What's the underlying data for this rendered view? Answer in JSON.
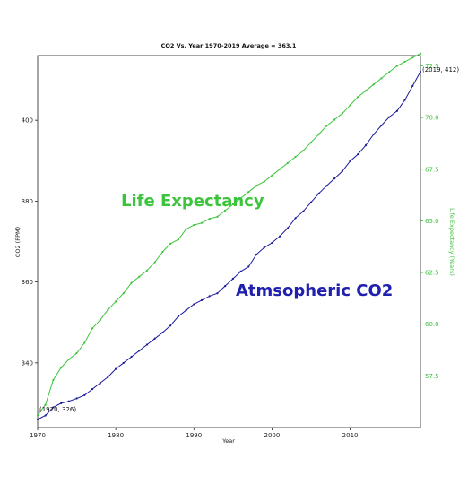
{
  "chart_data": {
    "type": "line",
    "title": "CO2 Vs. Year 1970-2019 Average = 363.1",
    "xlabel": "Year",
    "ylabel": "CO2 (PPM)",
    "ylabel_right": "Life Expectancy (Years)",
    "xlim": [
      1970,
      2019
    ],
    "ylim": [
      324,
      416
    ],
    "ylim_right": [
      55,
      73
    ],
    "x_ticks": [
      1970,
      1980,
      1990,
      2000,
      2010
    ],
    "y_ticks": [
      340,
      360,
      380,
      400
    ],
    "y_ticks_right": [
      "57.5",
      "60.0",
      "62.5",
      "65.0",
      "67.5",
      "70.0",
      "72.5"
    ],
    "grid": false,
    "x": [
      1970,
      1971,
      1972,
      1973,
      1974,
      1975,
      1976,
      1977,
      1978,
      1979,
      1980,
      1981,
      1982,
      1983,
      1984,
      1985,
      1986,
      1987,
      1988,
      1989,
      1990,
      1991,
      1992,
      1993,
      1994,
      1995,
      1996,
      1997,
      1998,
      1999,
      2000,
      2001,
      2002,
      2003,
      2004,
      2005,
      2006,
      2007,
      2008,
      2009,
      2010,
      2011,
      2012,
      2013,
      2014,
      2015,
      2016,
      2017,
      2018,
      2019
    ],
    "series": [
      {
        "name": "Atmsopheric CO2",
        "color": "#1a1a9c",
        "axis": "left",
        "values": [
          326,
          327,
          329,
          330,
          330.5,
          331.2,
          332,
          333.5,
          335,
          336.5,
          338.5,
          340,
          341.5,
          343,
          344.5,
          346,
          347.5,
          349.2,
          351.5,
          353,
          354.5,
          355.5,
          356.5,
          357.2,
          359,
          360.8,
          362.6,
          363.8,
          366.8,
          368.5,
          369.7,
          371.3,
          373.3,
          375.8,
          377.5,
          379.7,
          381.9,
          383.8,
          385.6,
          387.4,
          389.9,
          391.6,
          393.8,
          396.5,
          398.7,
          400.8,
          402.3,
          405,
          408.5,
          412
        ]
      },
      {
        "name": "Life Expectancy",
        "color": "#3cc43c",
        "axis": "right",
        "values": [
          55.6,
          56.1,
          57.3,
          57.9,
          58.3,
          58.6,
          59.1,
          59.8,
          60.2,
          60.7,
          61.1,
          61.5,
          62,
          62.3,
          62.6,
          63,
          63.5,
          63.9,
          64.1,
          64.6,
          64.8,
          64.9,
          65.1,
          65.2,
          65.5,
          65.8,
          66.1,
          66.4,
          66.7,
          66.9,
          67.2,
          67.5,
          67.8,
          68.1,
          68.4,
          68.8,
          69.2,
          69.6,
          69.9,
          70.2,
          70.6,
          71,
          71.3,
          71.6,
          71.9,
          72.2,
          72.5,
          72.7,
          72.9,
          73.1
        ]
      }
    ],
    "annotations": [
      {
        "text": "(1970, 326)"
      },
      {
        "text": "(2019, 412)"
      }
    ]
  }
}
